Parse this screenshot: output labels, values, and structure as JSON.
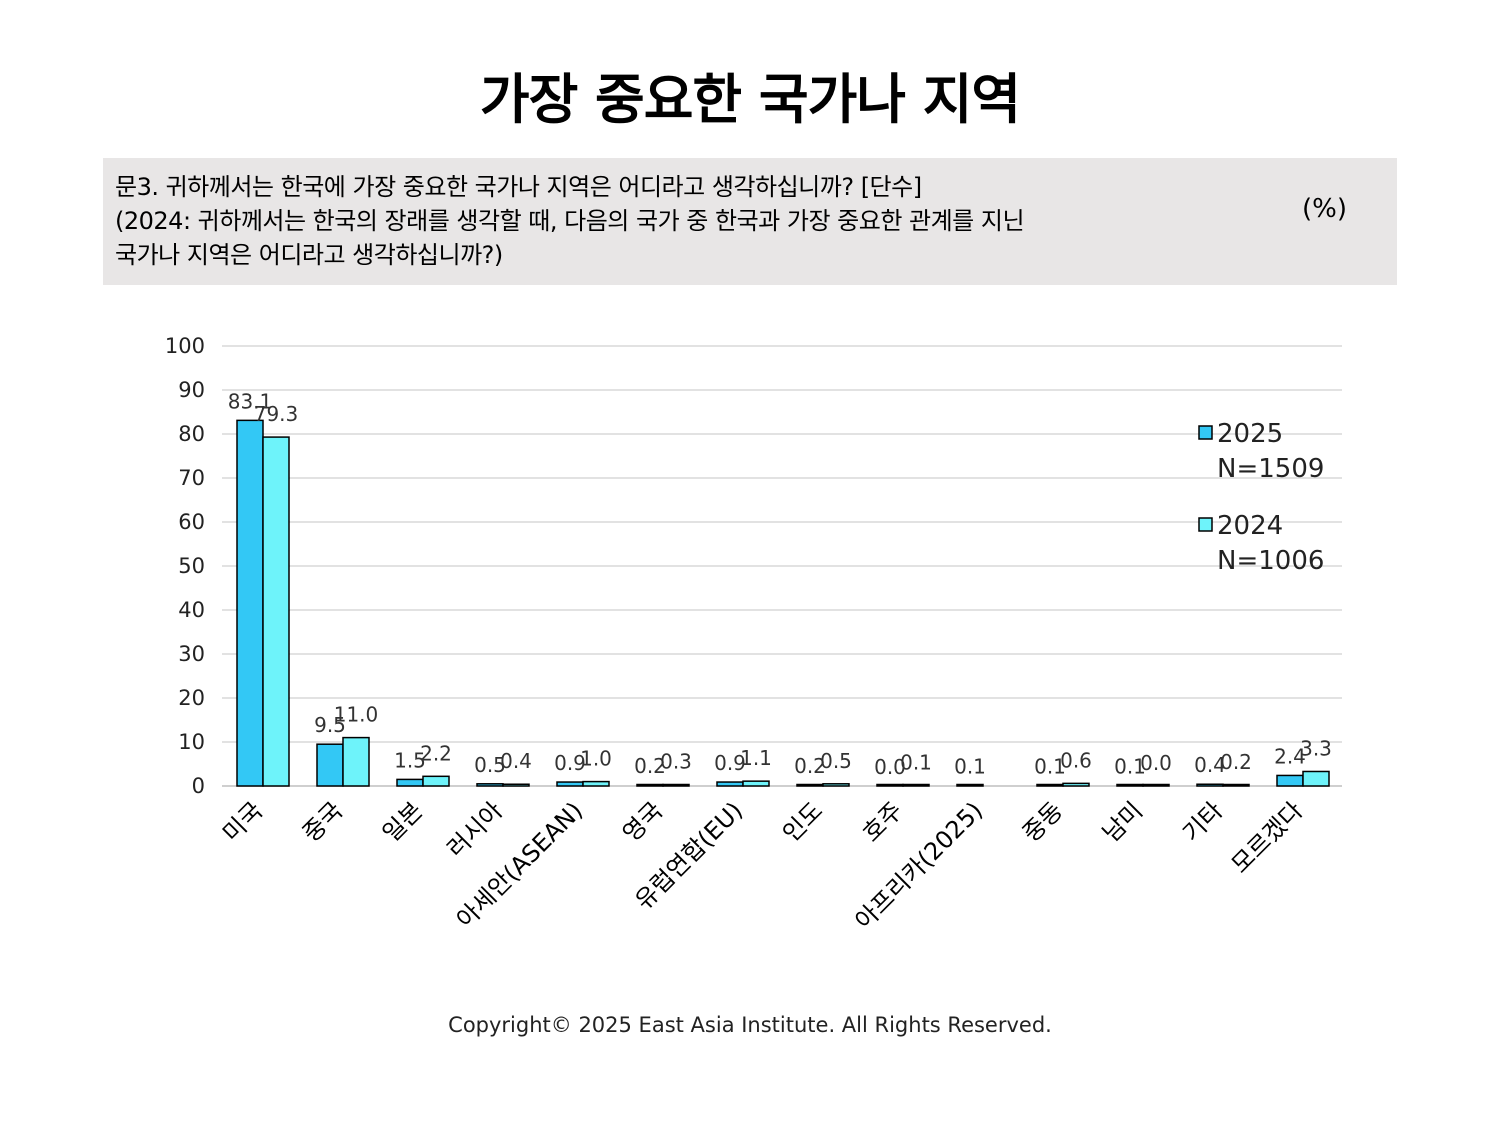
{
  "title": "가장 중요한 국가나 지역",
  "question": {
    "line1": "문3. 귀하께서는 한국에 가장 중요한 국가나 지역은 어디라고 생각하십니까? [단수]",
    "line2": "(2024: 귀하께서는 한국의 장래를 생각할 때, 다음의 국가 중 한국과 가장 중요한 관계를 지닌",
    "line3": "국가나 지역은 어디라고 생각하십니까?)",
    "unit": "(%)"
  },
  "footer": "Copyright© 2025 East Asia Institute. All Rights Reserved.",
  "colors": {
    "series_2025": "#33c8f5",
    "series_2024": "#6ef3fa",
    "grid": "#d9d9d9",
    "bar_border": "#000000"
  },
  "chart_data": {
    "type": "bar",
    "categories": [
      "미국",
      "중국",
      "일본",
      "러시아",
      "아세안(ASEAN)",
      "영국",
      "유럽연합(EU)",
      "인도",
      "호주",
      "아프리카(2025)",
      "중동",
      "남미",
      "기타",
      "모르겠다"
    ],
    "series": [
      {
        "name": "2025",
        "name_line2": "N=1509",
        "values": [
          83.1,
          9.5,
          1.5,
          0.5,
          0.9,
          0.2,
          0.9,
          0.2,
          0.0,
          0.1,
          0.1,
          0.1,
          0.4,
          2.4
        ]
      },
      {
        "name": "2024",
        "name_line2": "N=1006",
        "values": [
          79.3,
          11.0,
          2.2,
          0.4,
          1.0,
          0.3,
          1.1,
          0.5,
          0.1,
          null,
          0.6,
          0.0,
          0.2,
          3.3
        ]
      }
    ],
    "ylim": [
      0,
      100
    ],
    "yticks": [
      0,
      10,
      20,
      30,
      40,
      50,
      60,
      70,
      80,
      90,
      100
    ],
    "grid": true,
    "legend_position": "right"
  }
}
